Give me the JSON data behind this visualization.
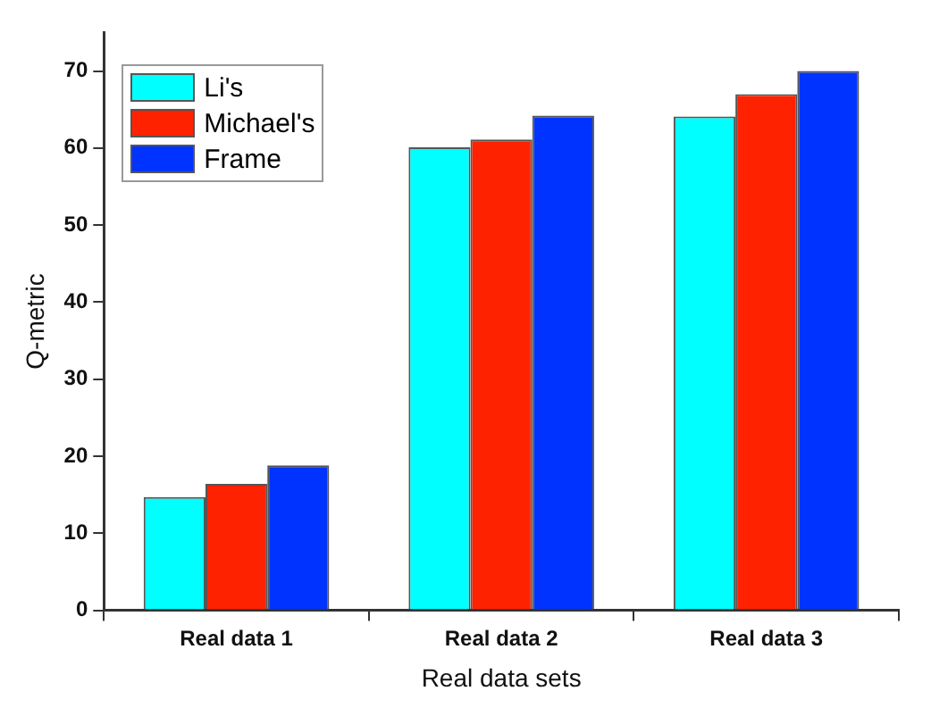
{
  "chart_data": {
    "type": "bar",
    "xlabel": "Real data sets",
    "ylabel": "Q-metric",
    "categories": [
      "Real data 1",
      "Real data 2",
      "Real data 3"
    ],
    "series": [
      {
        "name": "Li's",
        "color": "#00ffff",
        "values": [
          14.7,
          60.1,
          64.1
        ]
      },
      {
        "name": "Michael's",
        "color": "#ff2200",
        "values": [
          16.4,
          61.1,
          67.0
        ]
      },
      {
        "name": "Frame",
        "color": "#0033ff",
        "values": [
          18.8,
          64.2,
          70.0
        ]
      }
    ],
    "ylim": [
      0,
      75
    ],
    "yticks": [
      0,
      10,
      20,
      30,
      40,
      50,
      60,
      70
    ],
    "grid": false,
    "legend": "top left"
  }
}
